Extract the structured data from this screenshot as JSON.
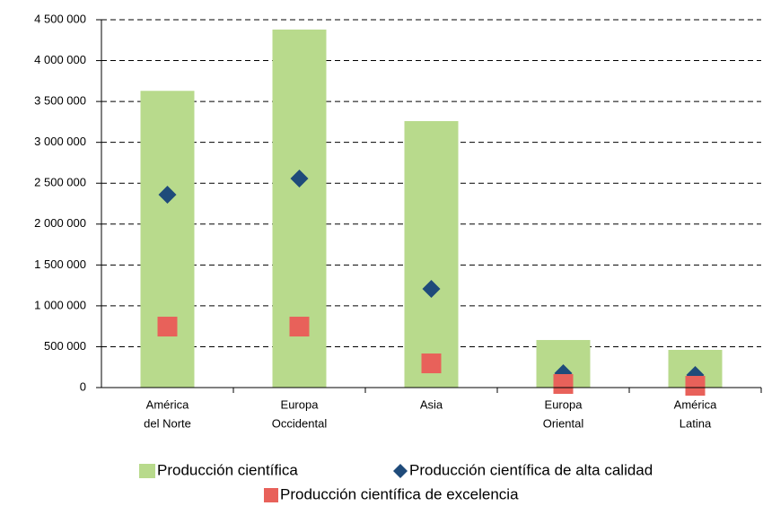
{
  "chart_data": {
    "type": "bar",
    "categories": [
      [
        "América",
        "del Norte"
      ],
      [
        "Europa",
        "Occidental"
      ],
      [
        "Asia"
      ],
      [
        "Europa",
        "Oriental"
      ],
      [
        "América",
        "Latina"
      ]
    ],
    "series": [
      {
        "name": "Producción científica",
        "color": "#b8da8c",
        "marker": "bar",
        "values": [
          3630000,
          4380000,
          3260000,
          582000,
          461000
        ]
      },
      {
        "name": "Producción científica de alta calidad",
        "color": "#1f4b7a",
        "marker": "diamond",
        "values": [
          2360000,
          2557000,
          1207000,
          176000,
          154000
        ]
      },
      {
        "name": "Producción científica de excelencia",
        "color": "#e8615a",
        "marker": "square",
        "values": [
          746000,
          746000,
          296000,
          44000,
          22000
        ]
      }
    ],
    "ylim": [
      0,
      4500000
    ],
    "yticks": [
      0,
      {
        "value": 500000,
        "label": "500 000"
      },
      {
        "value": 1000000,
        "label": "1 000 000"
      },
      {
        "value": 1500000,
        "label": "1 500 000"
      },
      {
        "value": 2000000,
        "label": "2 000 000"
      },
      {
        "value": 2500000,
        "label": "2 500 000"
      },
      {
        "value": 3000000,
        "label": "3 000 000"
      },
      {
        "value": 3500000,
        "label": "3 500 000"
      },
      {
        "value": 4000000,
        "label": "4 000 000"
      },
      {
        "value": 4500000,
        "label": "4 500 000"
      }
    ],
    "grid": true
  }
}
